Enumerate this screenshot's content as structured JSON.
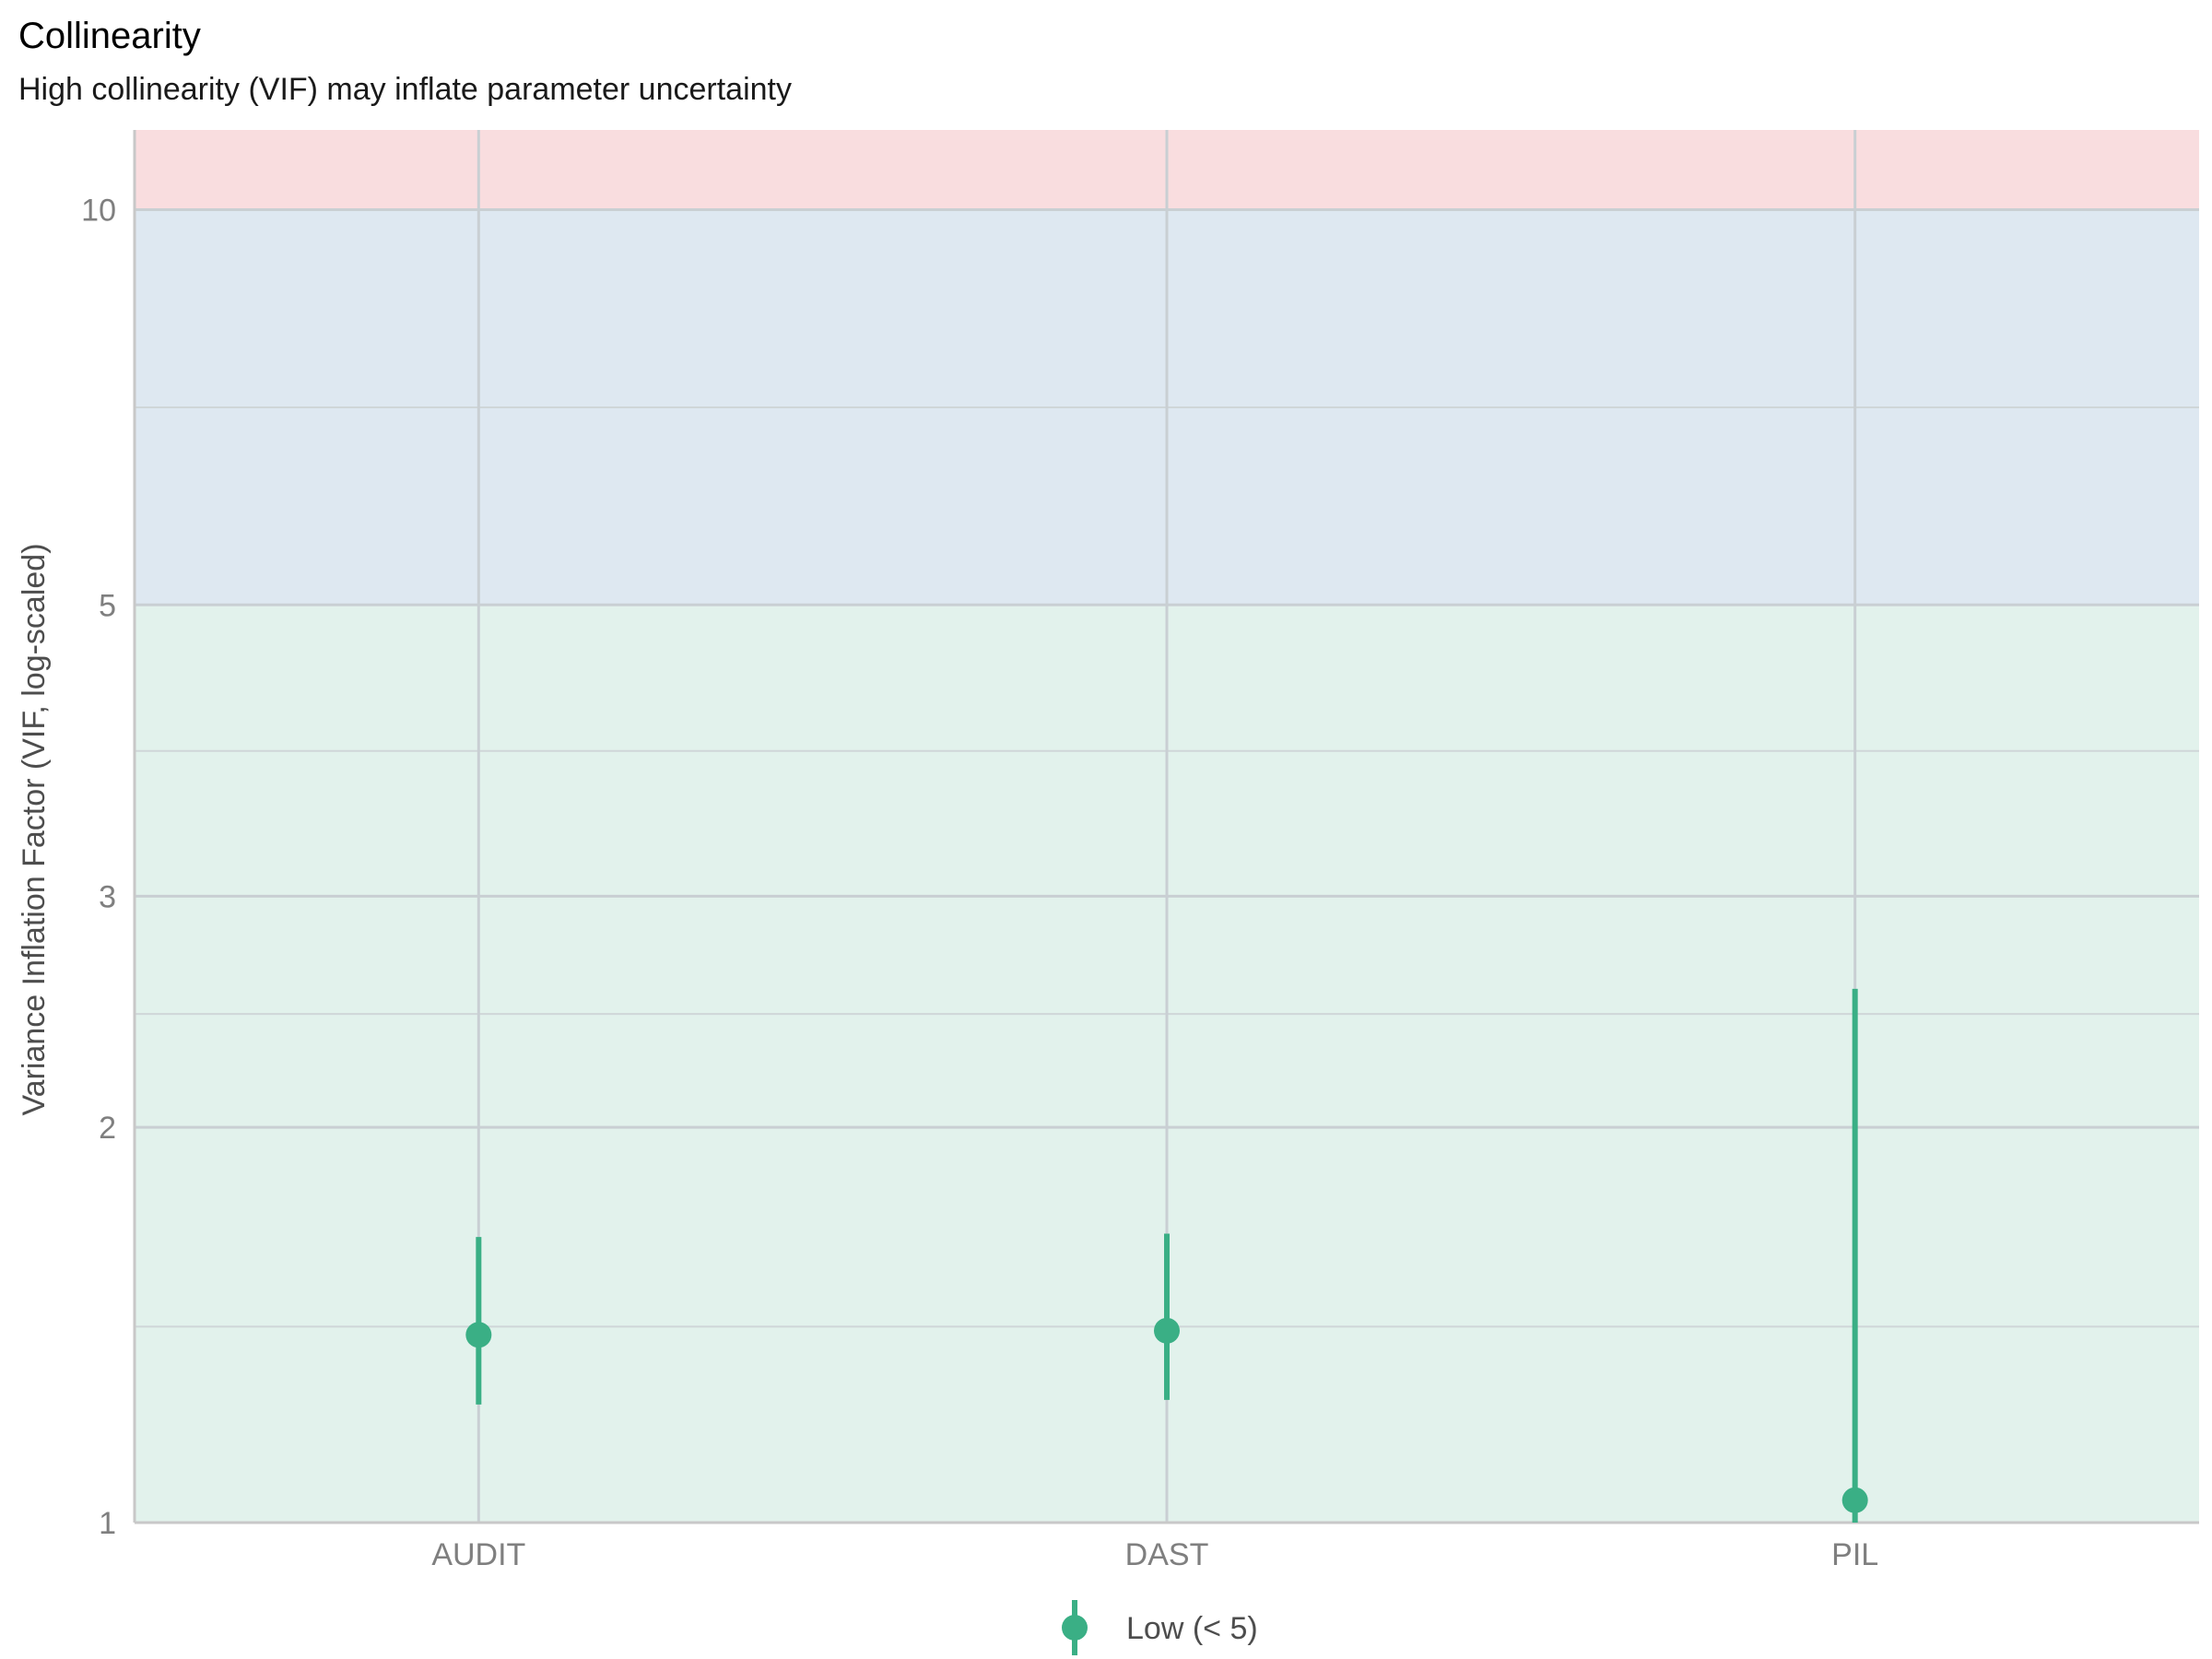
{
  "chart_data": {
    "type": "scatter",
    "title": "Collinearity",
    "subtitle": "High collinearity (VIF) may inflate parameter uncertainty",
    "xlabel": "",
    "ylabel": "Variance Inflation Factor (VIF, log-scaled)",
    "y_scale": "log",
    "ylim": [
      1,
      11.5
    ],
    "y_ticks": [
      1,
      2,
      3,
      5,
      10
    ],
    "y_tick_labels": [
      "1",
      "2",
      "3",
      "5",
      "10"
    ],
    "y_minor_gridlines": [
      1.41,
      2.44,
      3.87,
      7.07
    ],
    "categories": [
      "AUDIT",
      "DAST",
      "PIL"
    ],
    "series": [
      {
        "name": "Low (< 5)",
        "color": "#3aaf85",
        "values": [
          1.39,
          1.4,
          1.04
        ],
        "ci_low": [
          1.23,
          1.24,
          1.0
        ],
        "ci_high": [
          1.65,
          1.66,
          2.55
        ]
      }
    ],
    "bands": [
      {
        "from": 1,
        "to": 5,
        "color": "#e2f2ec"
      },
      {
        "from": 5,
        "to": 10,
        "color": "#dee8f1"
      },
      {
        "from": 10,
        "to": 11.5,
        "color": "#f9dddf"
      }
    ],
    "grid": true,
    "legend_position": "bottom"
  }
}
